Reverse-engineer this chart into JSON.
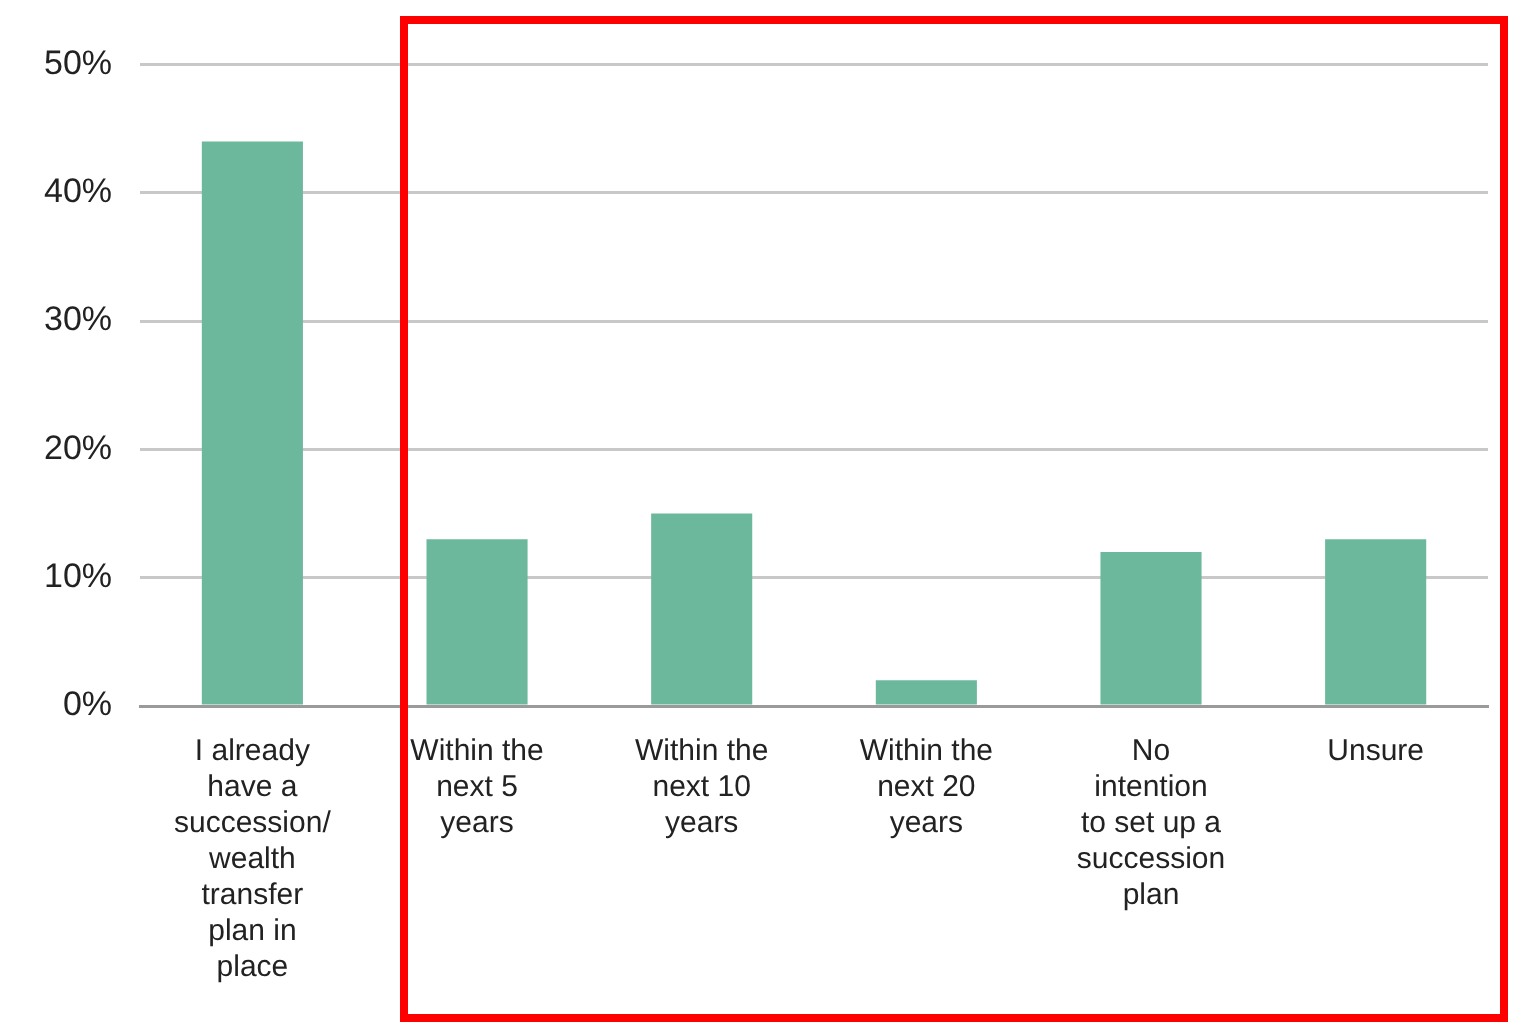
{
  "chart_data": {
    "type": "bar",
    "categories": [
      "I already have a succession/ wealth transfer plan in place",
      "Within the next 5 years",
      "Within the next 10 years",
      "Within the next 20 years",
      "No intention to set up a succession plan",
      "Unsure"
    ],
    "values": [
      44,
      13,
      15,
      2,
      12,
      13
    ],
    "color": "#6cb89c",
    "ylim": [
      0,
      50
    ],
    "yticks": [
      {
        "value": 0,
        "label": "0%"
      },
      {
        "value": 10,
        "label": "10%"
      },
      {
        "value": 20,
        "label": "20%"
      },
      {
        "value": 30,
        "label": "30%"
      },
      {
        "value": 40,
        "label": "40%"
      },
      {
        "value": 50,
        "label": "50%"
      }
    ],
    "grid": "y"
  }
}
